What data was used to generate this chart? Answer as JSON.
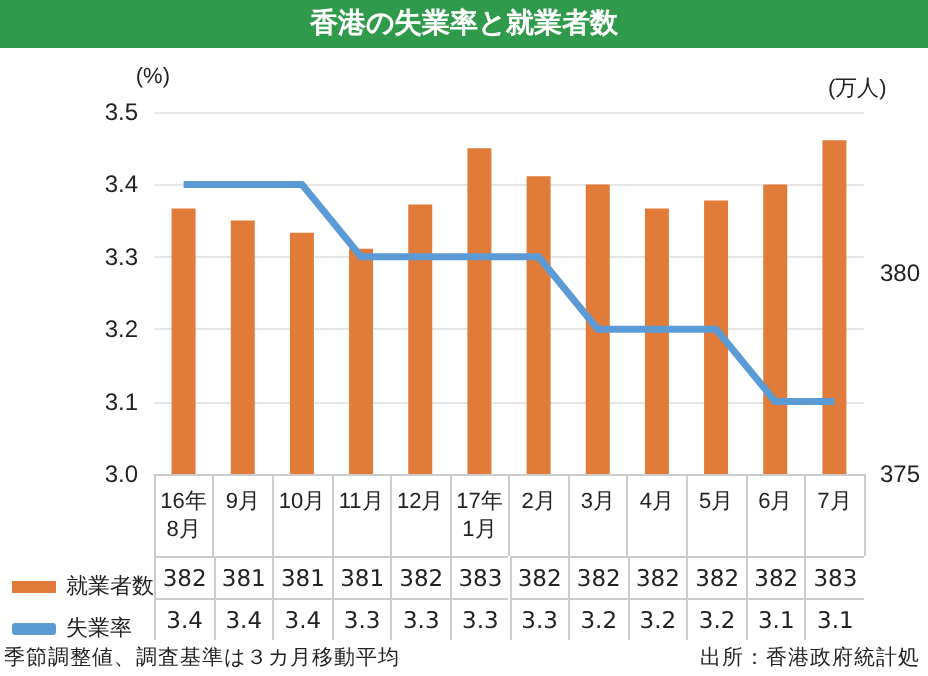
{
  "chart_data": {
    "type": "bar",
    "title": "香港の失業率と就業者数",
    "ylabel": "(%)",
    "y2label": "(万人)",
    "categories": [
      "16年\n8月",
      "9月",
      "10月",
      "11月",
      "12月",
      "17年\n1月",
      "2月",
      "3月",
      "4月",
      "5月",
      "6月",
      "7月"
    ],
    "series": [
      {
        "name": "就業者数",
        "axis": "y2",
        "color": "#e07b39",
        "values": [
          381.6,
          381.3,
          381.0,
          380.6,
          381.7,
          383.1,
          382.4,
          382.2,
          381.6,
          381.8,
          382.2,
          383.3
        ],
        "value_labels": [
          "382",
          "381",
          "381",
          "381",
          "382",
          "383",
          "382",
          "382",
          "382",
          "382",
          "382",
          "383"
        ]
      },
      {
        "name": "失業率",
        "type": "line",
        "color": "#5b9bd5",
        "marker": "none",
        "values": [
          3.4,
          3.4,
          3.4,
          3.3,
          3.3,
          3.3,
          3.3,
          3.2,
          3.2,
          3.2,
          3.1,
          3.1
        ],
        "value_labels": [
          "3.4",
          "3.4",
          "3.4",
          "3.3",
          "3.3",
          "3.3",
          "3.3",
          "3.2",
          "3.2",
          "3.2",
          "3.1",
          "3.1"
        ]
      }
    ],
    "ylim": [
      3.0,
      3.5
    ],
    "yticks": [
      {
        "value": 3.0,
        "label": "3.0"
      },
      3.1,
      3.2,
      3.3,
      3.4,
      3.5
    ],
    "y2lim": [
      375,
      384
    ],
    "y2ticks": [
      375,
      380
    ],
    "grid": "y",
    "legend": "bottom left",
    "annotations": [
      "季節調整値、調査基準は３カ月移動平均",
      "出所：香港政府統計処"
    ]
  }
}
